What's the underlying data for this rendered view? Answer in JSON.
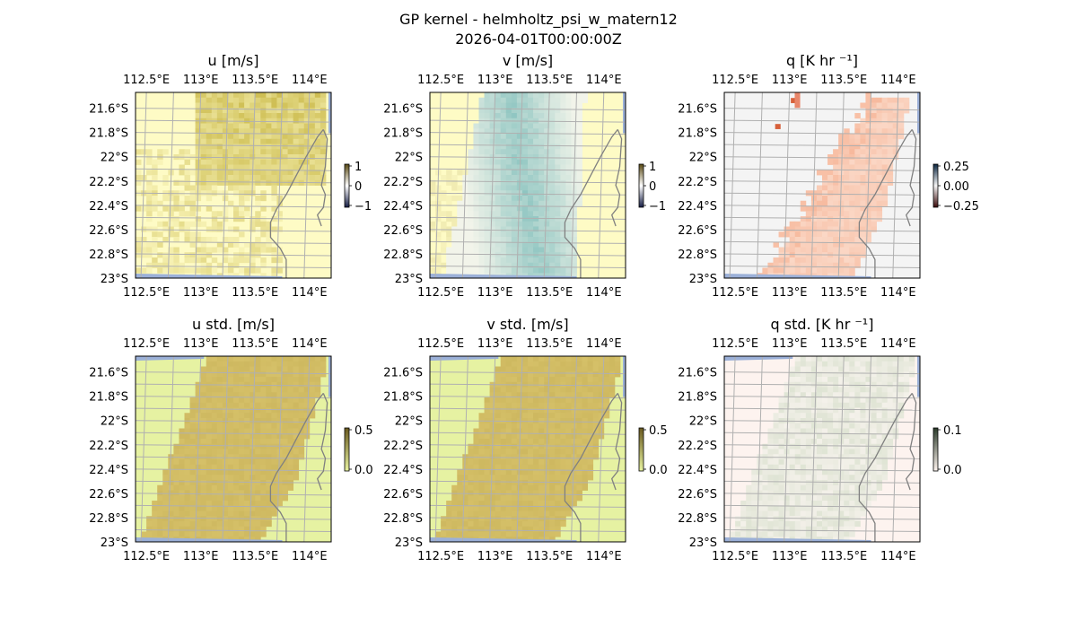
{
  "figure": {
    "title": "GP kernel - helmholtz_psi_w_matern12",
    "subtitle": "2026-04-01T00:00:00Z"
  },
  "colors": {
    "land": "#f4f4f4",
    "ocean_edge": "#9bb0d8",
    "grid": "#b0b0b0",
    "coast": "#808080"
  },
  "chart_data": [
    {
      "type": "heatmap",
      "title": "u [m/s]",
      "xlabel": "",
      "ylabel": "",
      "x_ticks": [
        "112.5°E",
        "113°E",
        "113.5°E",
        "114°E"
      ],
      "x_tick_values": [
        112.5,
        113.0,
        113.5,
        114.0
      ],
      "y_ticks": [
        "21.6°S",
        "21.8°S",
        "22°S",
        "22.2°S",
        "22.4°S",
        "22.6°S",
        "22.8°S",
        "23°S"
      ],
      "y_tick_values": [
        -21.6,
        -21.8,
        -22.0,
        -22.2,
        -22.4,
        -22.6,
        -22.8,
        -23.0
      ],
      "xlim": [
        112.4,
        114.2
      ],
      "ylim": [
        -23.0,
        -21.47
      ],
      "colorbar": {
        "ticks": [
          "1",
          "0",
          "−1"
        ],
        "range": [
          -1,
          1
        ],
        "colors": [
          "#151d44",
          "#ffffff",
          "#5a4a14"
        ]
      },
      "field": {
        "base": "#fefbc5",
        "high": "#c8b644",
        "pattern": "u"
      },
      "grid": true
    },
    {
      "type": "heatmap",
      "title": "v [m/s]",
      "xlabel": "",
      "ylabel": "",
      "x_ticks": [
        "112.5°E",
        "113°E",
        "113.5°E",
        "114°E"
      ],
      "x_tick_values": [
        112.5,
        113.0,
        113.5,
        114.0
      ],
      "y_ticks": [
        "21.6°S",
        "21.8°S",
        "22°S",
        "22.2°S",
        "22.4°S",
        "22.6°S",
        "22.8°S",
        "23°S"
      ],
      "y_tick_values": [
        -21.6,
        -21.8,
        -22.0,
        -22.2,
        -22.4,
        -22.6,
        -22.8,
        -23.0
      ],
      "xlim": [
        112.4,
        114.2
      ],
      "ylim": [
        -23.0,
        -21.47
      ],
      "colorbar": {
        "ticks": [
          "1",
          "0",
          "−1"
        ],
        "range": [
          -1,
          1
        ],
        "colors": [
          "#151d44",
          "#ffffff",
          "#5a4a14"
        ]
      },
      "field": {
        "base": "#fefbc5",
        "high": "#8cc4c0",
        "pattern": "v"
      },
      "grid": true
    },
    {
      "type": "heatmap",
      "title": "q [K hr ⁻¹]",
      "xlabel": "",
      "ylabel": "",
      "x_ticks": [
        "112.5°E",
        "113°E",
        "113.5°E",
        "114°E"
      ],
      "x_tick_values": [
        112.5,
        113.0,
        113.5,
        114.0
      ],
      "y_ticks": [
        "21.6°S",
        "21.8°S",
        "22°S",
        "22.2°S",
        "22.4°S",
        "22.6°S",
        "22.8°S",
        "23°S"
      ],
      "y_tick_values": [
        -21.6,
        -21.8,
        -22.0,
        -22.2,
        -22.4,
        -22.6,
        -22.8,
        -23.0
      ],
      "xlim": [
        112.4,
        114.2
      ],
      "ylim": [
        -23.0,
        -21.47
      ],
      "colorbar": {
        "ticks": [
          "0.25",
          "0.00",
          "−0.25"
        ],
        "range": [
          -0.25,
          0.25
        ],
        "colors": [
          "#3a0a0a",
          "#f6f6f6",
          "#0a2540"
        ]
      },
      "field": {
        "base": "#fde4d6",
        "high": "#f4a582",
        "pattern": "q"
      },
      "grid": true
    },
    {
      "type": "heatmap",
      "title": "u std. [m/s]",
      "xlabel": "",
      "ylabel": "",
      "x_ticks": [
        "112.5°E",
        "113°E",
        "113.5°E",
        "114°E"
      ],
      "x_tick_values": [
        112.5,
        113.0,
        113.5,
        114.0
      ],
      "y_ticks": [
        "21.6°S",
        "21.8°S",
        "22°S",
        "22.2°S",
        "22.4°S",
        "22.6°S",
        "22.8°S",
        "23°S"
      ],
      "y_tick_values": [
        -21.6,
        -21.8,
        -22.0,
        -22.2,
        -22.4,
        -22.6,
        -22.8,
        -23.0
      ],
      "xlim": [
        112.4,
        114.2
      ],
      "ylim": [
        -23.0,
        -21.47
      ],
      "colorbar": {
        "ticks": [
          "0.5",
          "0.0"
        ],
        "range": [
          0,
          0.5
        ],
        "colors": [
          "#e8f3a0",
          "#6a5a20"
        ]
      },
      "field": {
        "base": "#d5c068",
        "high": "#c9b35a",
        "pattern": "std"
      },
      "grid": true
    },
    {
      "type": "heatmap",
      "title": "v std. [m/s]",
      "xlabel": "",
      "ylabel": "",
      "x_ticks": [
        "112.5°E",
        "113°E",
        "113.5°E",
        "114°E"
      ],
      "x_tick_values": [
        112.5,
        113.0,
        113.5,
        114.0
      ],
      "y_ticks": [
        "21.6°S",
        "21.8°S",
        "22°S",
        "22.2°S",
        "22.4°S",
        "22.6°S",
        "22.8°S",
        "23°S"
      ],
      "y_tick_values": [
        -21.6,
        -21.8,
        -22.0,
        -22.2,
        -22.4,
        -22.6,
        -22.8,
        -23.0
      ],
      "xlim": [
        112.4,
        114.2
      ],
      "ylim": [
        -23.0,
        -21.47
      ],
      "colorbar": {
        "ticks": [
          "0.5",
          "0.0"
        ],
        "range": [
          0,
          0.5
        ],
        "colors": [
          "#e8f3a0",
          "#6a5a20"
        ]
      },
      "field": {
        "base": "#d5c068",
        "high": "#c9b35a",
        "pattern": "std"
      },
      "grid": true
    },
    {
      "type": "heatmap",
      "title": "q std. [K hr ⁻¹]",
      "xlabel": "",
      "ylabel": "",
      "x_ticks": [
        "112.5°E",
        "113°E",
        "113.5°E",
        "114°E"
      ],
      "x_tick_values": [
        112.5,
        113.0,
        113.5,
        114.0
      ],
      "y_ticks": [
        "21.6°S",
        "21.8°S",
        "22°S",
        "22.2°S",
        "22.4°S",
        "22.6°S",
        "22.8°S",
        "23°S"
      ],
      "y_tick_values": [
        -21.6,
        -21.8,
        -22.0,
        -22.2,
        -22.4,
        -22.6,
        -22.8,
        -23.0
      ],
      "xlim": [
        112.4,
        114.2
      ],
      "ylim": [
        -23.0,
        -21.47
      ],
      "colorbar": {
        "ticks": [
          "0.1",
          "0.0"
        ],
        "range": [
          0,
          0.1
        ],
        "colors": [
          "#fff5f0",
          "#2a3a2a"
        ]
      },
      "field": {
        "base": "#eef0e4",
        "high": "#dfe3d2",
        "pattern": "qstd"
      },
      "grid": true
    }
  ]
}
